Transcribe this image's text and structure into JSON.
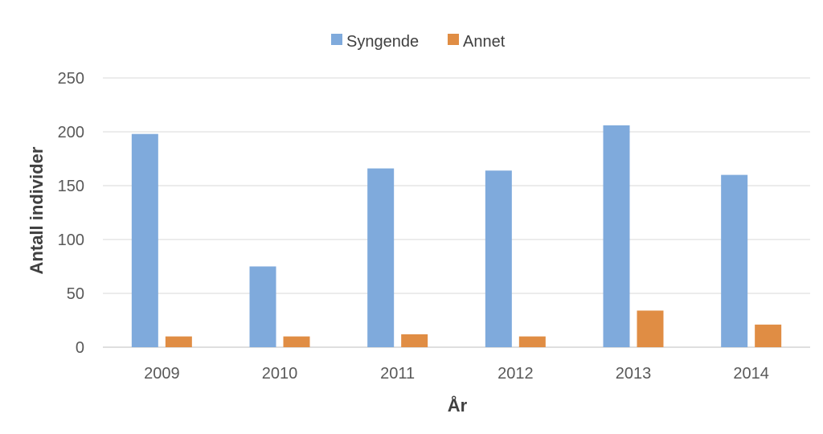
{
  "chart_data": {
    "type": "bar",
    "categories": [
      "2009",
      "2010",
      "2011",
      "2012",
      "2013",
      "2014"
    ],
    "series": [
      {
        "name": "Syngende",
        "values": [
          198,
          75,
          166,
          164,
          206,
          160
        ],
        "color": "#7faadc"
      },
      {
        "name": "Annet",
        "values": [
          10,
          10,
          12,
          10,
          34,
          21
        ],
        "color": "#e08d44"
      }
    ],
    "xlabel": "År",
    "ylabel": "Antall individer",
    "ylim": [
      0,
      250
    ],
    "yticks": [
      0,
      50,
      100,
      150,
      200,
      250
    ],
    "grid": true,
    "legend": "top-center"
  }
}
